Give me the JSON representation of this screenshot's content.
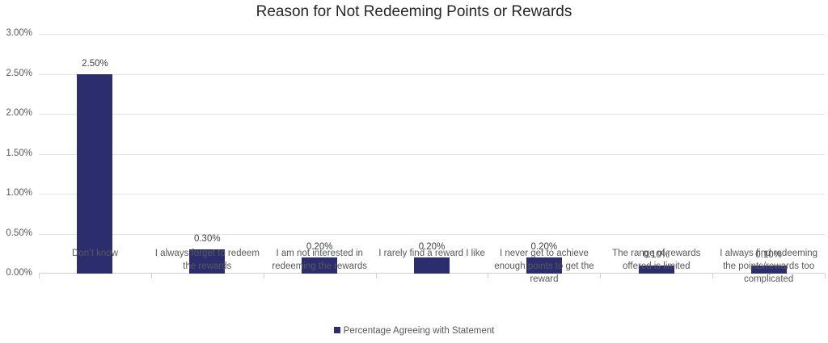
{
  "chart_data": {
    "type": "bar",
    "title": "Reason for Not Redeeming Points or Rewards",
    "xlabel": "",
    "ylabel": "",
    "ylim": [
      0,
      3.0
    ],
    "yticks": [
      "0.00%",
      "0.50%",
      "1.00%",
      "1.50%",
      "2.00%",
      "2.50%",
      "3.00%"
    ],
    "grid": true,
    "legend_position": "bottom",
    "bar_color": "#2b2d6e",
    "categories": [
      "Don’t know",
      "I always forget to redeem the rewards",
      "I am not interested in redeeming the rewards",
      "I rarely find a reward I like",
      "I never get to achieve enough points to get the reward",
      "The range of rewards offered is limited",
      "I always find redeeming the points/rewards too complicated"
    ],
    "series": [
      {
        "name": "Percentage Agreeing with Statement",
        "values": [
          2.5,
          0.3,
          0.2,
          0.2,
          0.2,
          0.1,
          0.1
        ]
      }
    ],
    "data_labels": [
      "2.50%",
      "0.30%",
      "0.20%",
      "0.20%",
      "0.20%",
      "0.10%",
      "0.10%"
    ]
  }
}
